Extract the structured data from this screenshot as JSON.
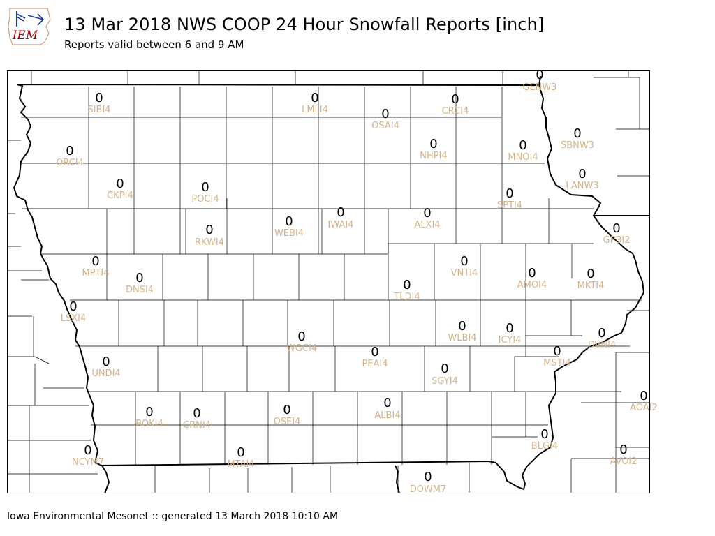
{
  "header": {
    "logo_text": "IEM",
    "title": "13 Mar 2018 NWS COOP 24 Hour Snowfall Reports [inch]",
    "subtitle": "Reports valid between 6 and 9 AM"
  },
  "footer": {
    "text": "Iowa Environmental Mesonet :: generated 13 March 2018 10:10 AM"
  },
  "map": {
    "value_color": "#000000",
    "station_label_color": "#d2b48c",
    "border_color": "#000000",
    "stations": [
      {
        "id": "GENW3",
        "value": "0"
      },
      {
        "id": "SIBI4",
        "value": "0"
      },
      {
        "id": "LMLI4",
        "value": "0"
      },
      {
        "id": "CRCI4",
        "value": "0"
      },
      {
        "id": "OSAI4",
        "value": "0"
      },
      {
        "id": "SBNW3",
        "value": "0"
      },
      {
        "id": "ORCI4",
        "value": "0"
      },
      {
        "id": "NHPI4",
        "value": "0"
      },
      {
        "id": "MNOI4",
        "value": "0"
      },
      {
        "id": "LANW3",
        "value": "0"
      },
      {
        "id": "CKPI4",
        "value": "0"
      },
      {
        "id": "POCI4",
        "value": "0"
      },
      {
        "id": "SPTI4",
        "value": "0"
      },
      {
        "id": "ALXI4",
        "value": "0"
      },
      {
        "id": "IWAI4",
        "value": "0"
      },
      {
        "id": "WEBI4",
        "value": "0"
      },
      {
        "id": "RKWI4",
        "value": "0"
      },
      {
        "id": "GPBI2",
        "value": "0"
      },
      {
        "id": "MPTI4",
        "value": "0"
      },
      {
        "id": "VNTI4",
        "value": "0"
      },
      {
        "id": "AMOI4",
        "value": "0"
      },
      {
        "id": "MKTI4",
        "value": "0"
      },
      {
        "id": "DNSI4",
        "value": "0"
      },
      {
        "id": "TLDI4",
        "value": "0"
      },
      {
        "id": "LSXI4",
        "value": "0"
      },
      {
        "id": "WLBI4",
        "value": "0"
      },
      {
        "id": "ICYI4",
        "value": "0"
      },
      {
        "id": "DVNI4",
        "value": "0"
      },
      {
        "id": "WGCI4",
        "value": "0"
      },
      {
        "id": "PEAI4",
        "value": "0"
      },
      {
        "id": "MSTI4",
        "value": "0"
      },
      {
        "id": "UNDI4",
        "value": "0"
      },
      {
        "id": "SGYI4",
        "value": "0"
      },
      {
        "id": "AOAI2",
        "value": "0"
      },
      {
        "id": "BOKI4",
        "value": "0"
      },
      {
        "id": "CRNI4",
        "value": "0"
      },
      {
        "id": "OSEI4",
        "value": "0"
      },
      {
        "id": "ALBI4",
        "value": "0"
      },
      {
        "id": "BLGI4",
        "value": "0"
      },
      {
        "id": "AVOI2",
        "value": "0"
      },
      {
        "id": "NCYM7",
        "value": "0"
      },
      {
        "id": "MTAI4",
        "value": "0"
      },
      {
        "id": "DOWM7",
        "value": "0"
      }
    ]
  }
}
